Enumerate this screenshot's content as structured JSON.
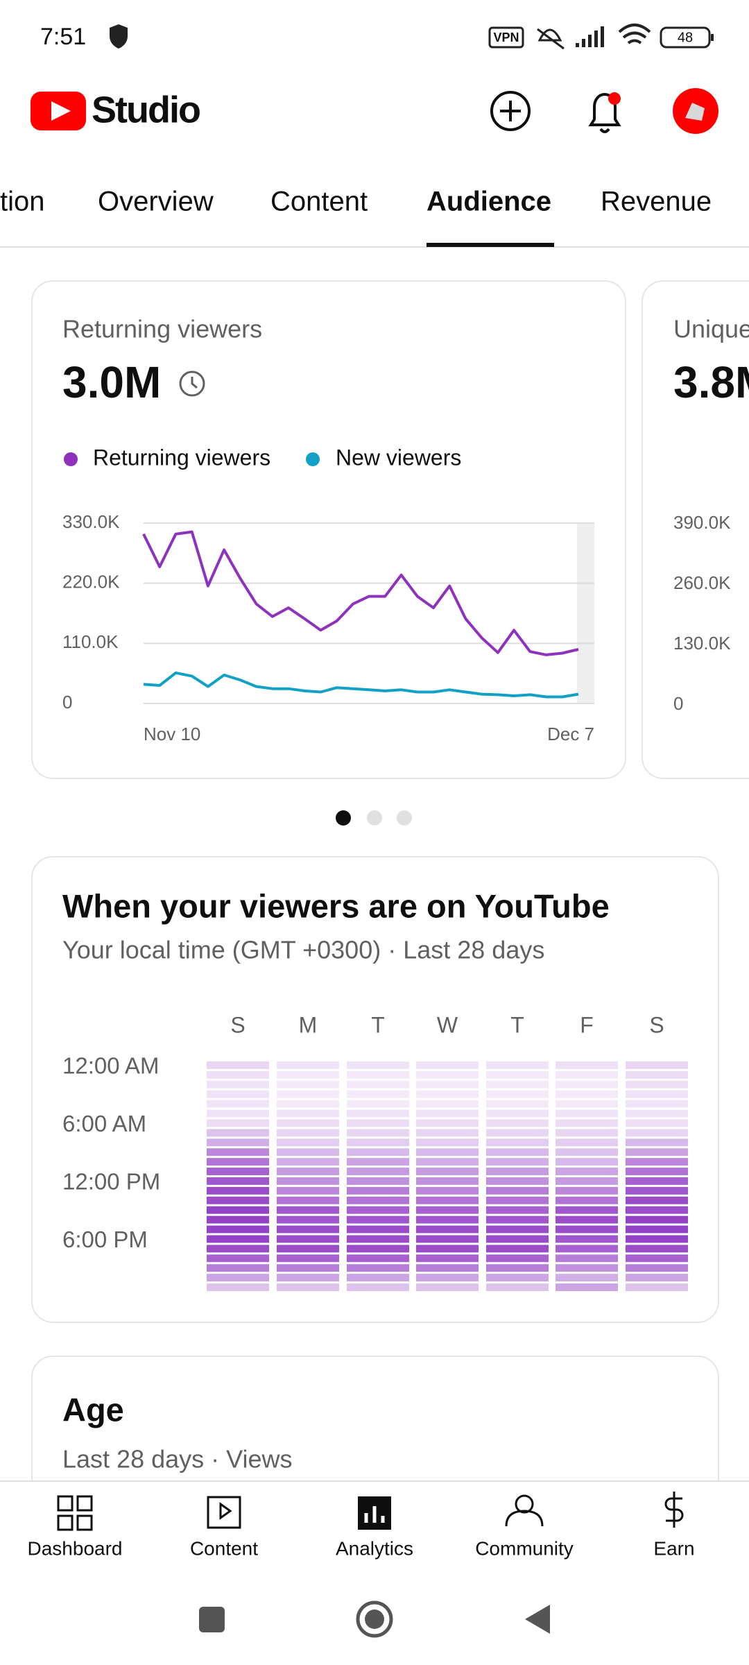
{
  "status_bar": {
    "time": "7:51",
    "vpn": "VPN",
    "battery": "48"
  },
  "header": {
    "title": "Studio"
  },
  "tabs": [
    "tion",
    "Overview",
    "Content",
    "Audience",
    "Revenue"
  ],
  "chart_data": [
    {
      "type": "line",
      "title": "Returning viewers",
      "headline": "3.0M",
      "categories": [
        "Nov 10",
        null,
        null,
        null,
        null,
        null,
        null,
        null,
        null,
        null,
        null,
        null,
        null,
        null,
        null,
        null,
        null,
        null,
        null,
        null,
        null,
        null,
        null,
        null,
        null,
        null,
        null,
        "Dec 7"
      ],
      "series": [
        {
          "name": "Returning viewers",
          "color": "#8c32bd",
          "values": [
            310000,
            250000,
            310000,
            314000,
            215000,
            281000,
            229000,
            182000,
            159000,
            175000,
            155000,
            134000,
            151000,
            182000,
            196000,
            196000,
            235000,
            196000,
            175000,
            215000,
            155000,
            120000,
            93000,
            134000,
            95000,
            89000,
            92000,
            99000
          ]
        },
        {
          "name": "New viewers",
          "color": "#12a1c6",
          "values": [
            35000,
            33000,
            56000,
            50000,
            31000,
            52000,
            43000,
            31000,
            27000,
            27000,
            23000,
            21000,
            29000,
            27000,
            25000,
            23000,
            25000,
            21000,
            21000,
            25000,
            21000,
            17000,
            16000,
            14000,
            16000,
            12000,
            12000,
            17000
          ]
        }
      ],
      "ylim": [
        0,
        330000
      ],
      "yticks": [
        0,
        {
          "value": 110000,
          "label": "110.0K"
        },
        {
          "value": 220000,
          "label": "220.0K"
        },
        {
          "value": 330000,
          "label": "330.0K"
        }
      ],
      "grid": true
    },
    {
      "type": "heatmap",
      "title": "When your viewers are on YouTube",
      "subtitle": "Your local time (GMT +0300) · Last 28 days",
      "columns": [
        "S",
        "M",
        "T",
        "W",
        "T",
        "F",
        "S"
      ],
      "rows": [
        "12:00 AM",
        null,
        null,
        null,
        null,
        null,
        "6:00 AM",
        null,
        null,
        null,
        null,
        null,
        "12:00 PM",
        null,
        null,
        null,
        null,
        null,
        "6:00 PM",
        null,
        null,
        null,
        null,
        null
      ],
      "color": "#8a2fc0",
      "values": [
        [
          15,
          8,
          8,
          8,
          8,
          10,
          15
        ],
        [
          10,
          5,
          5,
          5,
          5,
          5,
          12
        ],
        [
          8,
          5,
          5,
          5,
          5,
          5,
          10
        ],
        [
          8,
          5,
          5,
          5,
          5,
          5,
          8
        ],
        [
          8,
          5,
          5,
          5,
          5,
          5,
          8
        ],
        [
          8,
          8,
          8,
          8,
          8,
          8,
          8
        ],
        [
          12,
          12,
          12,
          12,
          12,
          12,
          10
        ],
        [
          25,
          15,
          15,
          15,
          15,
          15,
          15
        ],
        [
          35,
          20,
          20,
          20,
          20,
          20,
          30
        ],
        [
          55,
          30,
          30,
          30,
          30,
          25,
          40
        ],
        [
          65,
          35,
          40,
          35,
          35,
          30,
          55
        ],
        [
          75,
          45,
          45,
          45,
          45,
          40,
          65
        ],
        [
          80,
          50,
          50,
          50,
          50,
          45,
          75
        ],
        [
          85,
          55,
          60,
          55,
          60,
          55,
          80
        ],
        [
          85,
          65,
          65,
          65,
          65,
          65,
          85
        ],
        [
          90,
          80,
          75,
          75,
          75,
          80,
          85
        ],
        [
          90,
          80,
          80,
          80,
          80,
          85,
          90
        ],
        [
          90,
          85,
          85,
          85,
          85,
          85,
          90
        ],
        [
          90,
          85,
          85,
          85,
          85,
          80,
          90
        ],
        [
          85,
          85,
          85,
          85,
          85,
          75,
          85
        ],
        [
          75,
          75,
          75,
          75,
          75,
          60,
          75
        ],
        [
          60,
          60,
          60,
          60,
          60,
          50,
          60
        ],
        [
          40,
          40,
          40,
          40,
          40,
          35,
          40
        ],
        [
          25,
          25,
          25,
          25,
          25,
          40,
          25
        ]
      ]
    }
  ],
  "unique_card": {
    "title": "Unique",
    "headline": "3.8M",
    "ytick_labels": [
      "390.0K",
      "260.0K",
      "130.0K",
      "0"
    ]
  },
  "age_card": {
    "title": "Age",
    "subtitle": "Last 28 days · Views"
  },
  "bottom_nav": [
    "Dashboard",
    "Content",
    "Analytics",
    "Community",
    "Earn"
  ]
}
